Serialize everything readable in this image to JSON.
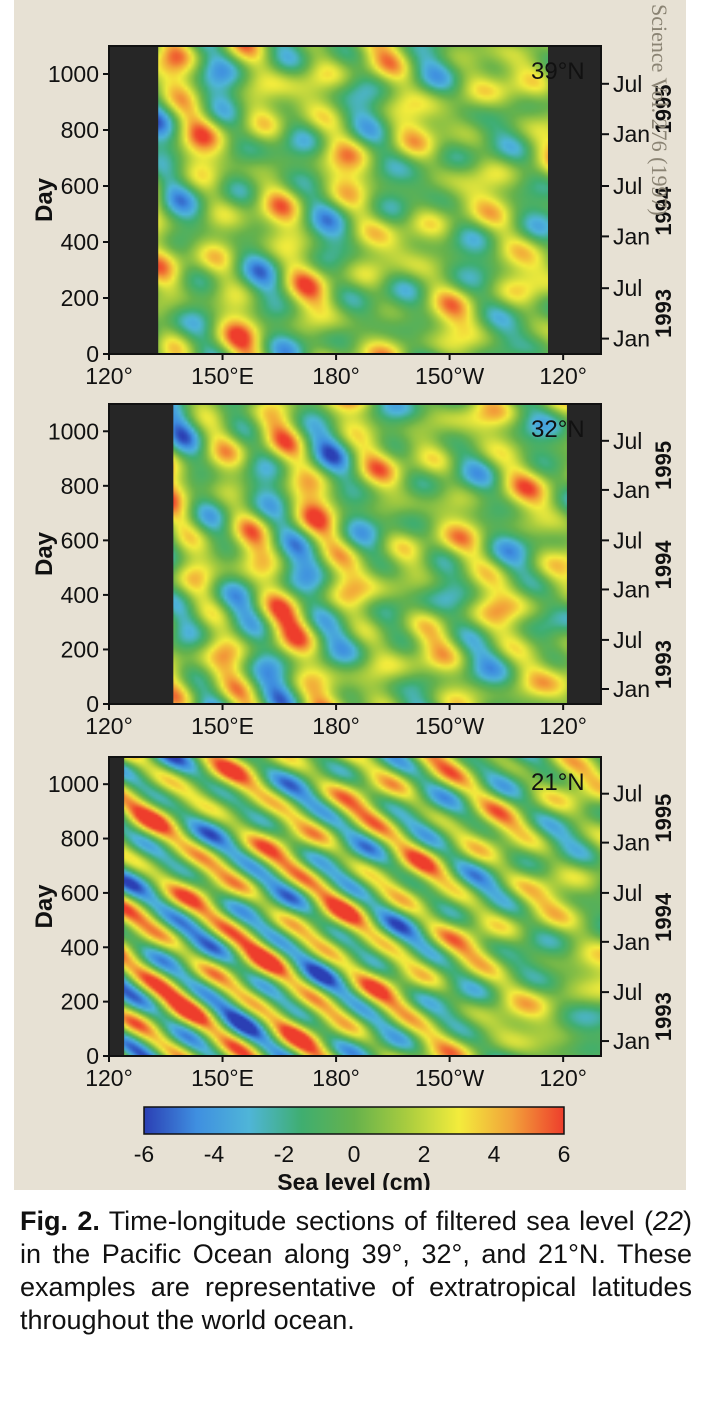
{
  "bleed_text": "Science Vol. 276 (1997)",
  "chart_data": [
    {
      "type": "heatmap",
      "panel_label": "39°N",
      "ylabel": "Day",
      "x_ticks": [
        "120°",
        "150°E",
        "180°",
        "150°W",
        "120°"
      ],
      "x_tick_values": [
        120,
        150,
        180,
        210,
        240
      ],
      "y_ticks": [
        0,
        200,
        400,
        600,
        800,
        1000
      ],
      "ylim": [
        0,
        1100
      ],
      "xlim": [
        120,
        250
      ],
      "land_mask_lon": [
        [
          120,
          133
        ],
        [
          236,
          250
        ]
      ],
      "right_ticks": [
        "Jan",
        "Jul",
        "Jan",
        "Jul",
        "Jan",
        "Jul"
      ],
      "right_tick_days": [
        55,
        235,
        420,
        600,
        785,
        965
      ],
      "years": [
        "1993",
        "1994",
        "1995"
      ],
      "year_center_days": [
        145,
        510,
        875
      ],
      "colorscale": "sea level anomaly, -6 to 6 cm",
      "wave_slope_deg_per_1000d": 18,
      "wave_amplitude_cm": 3.2
    },
    {
      "type": "heatmap",
      "panel_label": "32°N",
      "ylabel": "Day",
      "x_ticks": [
        "120°",
        "150°E",
        "180°",
        "150°W",
        "120°"
      ],
      "x_tick_values": [
        120,
        150,
        180,
        210,
        240
      ],
      "y_ticks": [
        0,
        200,
        400,
        600,
        800,
        1000
      ],
      "ylim": [
        0,
        1100
      ],
      "xlim": [
        120,
        250
      ],
      "land_mask_lon": [
        [
          120,
          137
        ],
        [
          241,
          250
        ]
      ],
      "right_ticks": [
        "Jan",
        "Jul",
        "Jan",
        "Jul",
        "Jan",
        "Jul"
      ],
      "right_tick_days": [
        55,
        235,
        420,
        600,
        785,
        965
      ],
      "years": [
        "1993",
        "1994",
        "1995"
      ],
      "year_center_days": [
        145,
        510,
        875
      ],
      "colorscale": "sea level anomaly, -6 to 6 cm",
      "wave_slope_deg_per_1000d": 28,
      "wave_amplitude_cm": 4.6
    },
    {
      "type": "heatmap",
      "panel_label": "21°N",
      "ylabel": "Day",
      "x_ticks": [
        "120°",
        "150°E",
        "180°",
        "150°W",
        "120°"
      ],
      "x_tick_values": [
        120,
        150,
        180,
        210,
        240
      ],
      "y_ticks": [
        0,
        200,
        400,
        600,
        800,
        1000
      ],
      "ylim": [
        0,
        1100
      ],
      "xlim": [
        120,
        250
      ],
      "land_mask_lon": [
        [
          120,
          124
        ]
      ],
      "right_ticks": [
        "Jan",
        "Jul",
        "Jan",
        "Jul",
        "Jan",
        "Jul"
      ],
      "right_tick_days": [
        55,
        235,
        420,
        600,
        785,
        965
      ],
      "years": [
        "1993",
        "1994",
        "1995"
      ],
      "year_center_days": [
        145,
        510,
        875
      ],
      "colorscale": "sea level anomaly, -6 to 6 cm",
      "wave_slope_deg_per_1000d": 95,
      "wave_amplitude_cm": 5.6
    }
  ],
  "colorbar": {
    "ticks": [
      -6,
      -4,
      -2,
      0,
      2,
      4,
      6
    ],
    "range": [
      -6,
      6
    ],
    "label": "Sea level (cm)",
    "stops": [
      "#2b3fb4",
      "#3f8fe0",
      "#4fb5d8",
      "#3fae70",
      "#66b24c",
      "#a8cc3f",
      "#f3ec3c",
      "#f2a23a",
      "#ee3d2c"
    ]
  },
  "caption": {
    "fig_label": "Fig. 2.",
    "text_before_ref": " Time-longitude sections of filtered sea level (",
    "ref": "22",
    "text_after_ref": ") in the Pacific Ocean along 39°, 32°, and 21°N. These examples are representative of extratropical latitudes throughout the world ocean."
  },
  "colors": {
    "paper": "#e7e1d4",
    "land": "#262626"
  }
}
